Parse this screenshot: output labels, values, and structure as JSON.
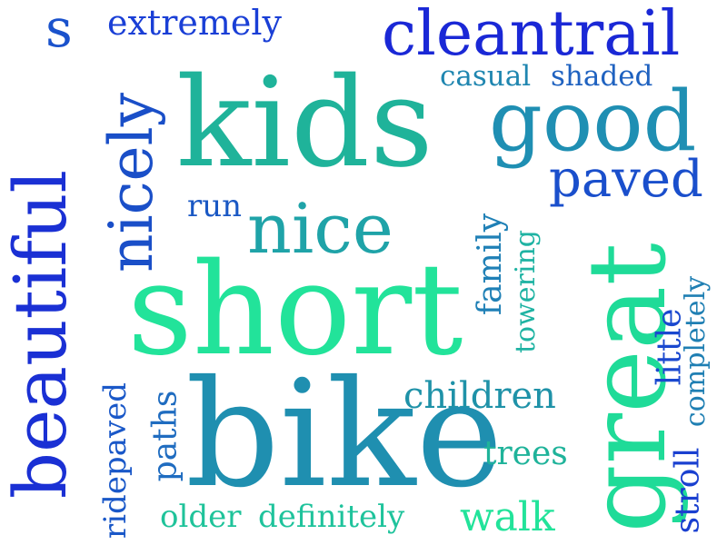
{
  "title": "",
  "palette": {
    "blue": "#1a3fd6",
    "blue_mid": "#1a55cc",
    "teal": "#1e8fa8",
    "teal_green": "#1fb39a",
    "green": "#22d899",
    "mint": "#1fe6a0"
  },
  "words": [
    {
      "id": "s",
      "text": "s",
      "color": "#1a52cc"
    },
    {
      "id": "extremely",
      "text": "extremely",
      "color": "#1a3fd6"
    },
    {
      "id": "cleantrail",
      "text": "cleantrail",
      "color": "#1a28d6"
    },
    {
      "id": "casual",
      "text": "casual",
      "color": "#1f86b0"
    },
    {
      "id": "shaded",
      "text": "shaded",
      "color": "#1f62c0"
    },
    {
      "id": "kids",
      "text": "kids",
      "color": "#1fb39a"
    },
    {
      "id": "good",
      "text": "good",
      "color": "#1f8fb3"
    },
    {
      "id": "nicely",
      "text": "nicely",
      "color": "#1a4fc8"
    },
    {
      "id": "paved",
      "text": "paved",
      "color": "#1a4fcc"
    },
    {
      "id": "run",
      "text": "run",
      "color": "#1a58c4"
    },
    {
      "id": "nice",
      "text": "nice",
      "color": "#1fa3a8"
    },
    {
      "id": "beautiful",
      "text": "beautiful",
      "color": "#1a30d4"
    },
    {
      "id": "short",
      "text": "short",
      "color": "#22e39a"
    },
    {
      "id": "family",
      "text": "family",
      "color": "#1f80b6"
    },
    {
      "id": "towering",
      "text": "towering",
      "color": "#1fb3a3"
    },
    {
      "id": "great",
      "text": "great",
      "color": "#1fdb98"
    },
    {
      "id": "little",
      "text": "little",
      "color": "#1a48cf"
    },
    {
      "id": "completely",
      "text": "completely",
      "color": "#1f7fb3"
    },
    {
      "id": "children",
      "text": "children",
      "color": "#1f92a8"
    },
    {
      "id": "bike",
      "text": "bike",
      "color": "#1f8fb0"
    },
    {
      "id": "paths",
      "text": "paths",
      "color": "#1f6cc0"
    },
    {
      "id": "ridepaved",
      "text": "ridepaved",
      "color": "#1a58c8"
    },
    {
      "id": "trees",
      "text": "trees",
      "color": "#1fb39a"
    },
    {
      "id": "stroll",
      "text": "stroll",
      "color": "#1a40d0"
    },
    {
      "id": "older",
      "text": "older",
      "color": "#1fc39a"
    },
    {
      "id": "definitely",
      "text": "definitely",
      "color": "#1fc39c"
    },
    {
      "id": "walk",
      "text": "walk",
      "color": "#22e39a"
    }
  ]
}
